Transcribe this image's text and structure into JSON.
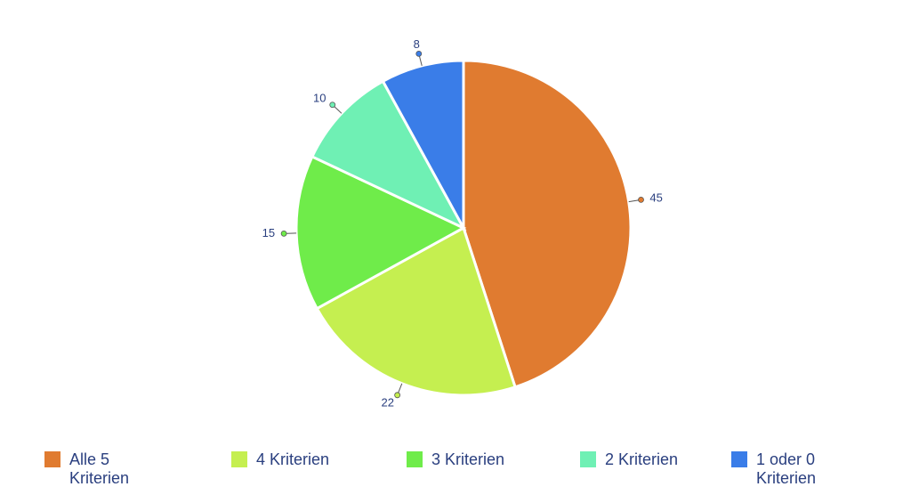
{
  "chart_data": {
    "type": "pie",
    "categories": [
      "Alle 5 Kriterien",
      "4 Kriterien",
      "3 Kriterien",
      "2 Kriterien",
      "1 oder 0 Kriterien"
    ],
    "values": [
      45,
      22,
      15,
      10,
      8
    ],
    "colors": [
      "#e07b30",
      "#c5ef50",
      "#6fec4a",
      "#6ff0b4",
      "#3a7de8"
    ],
    "legend": "bottom"
  }
}
